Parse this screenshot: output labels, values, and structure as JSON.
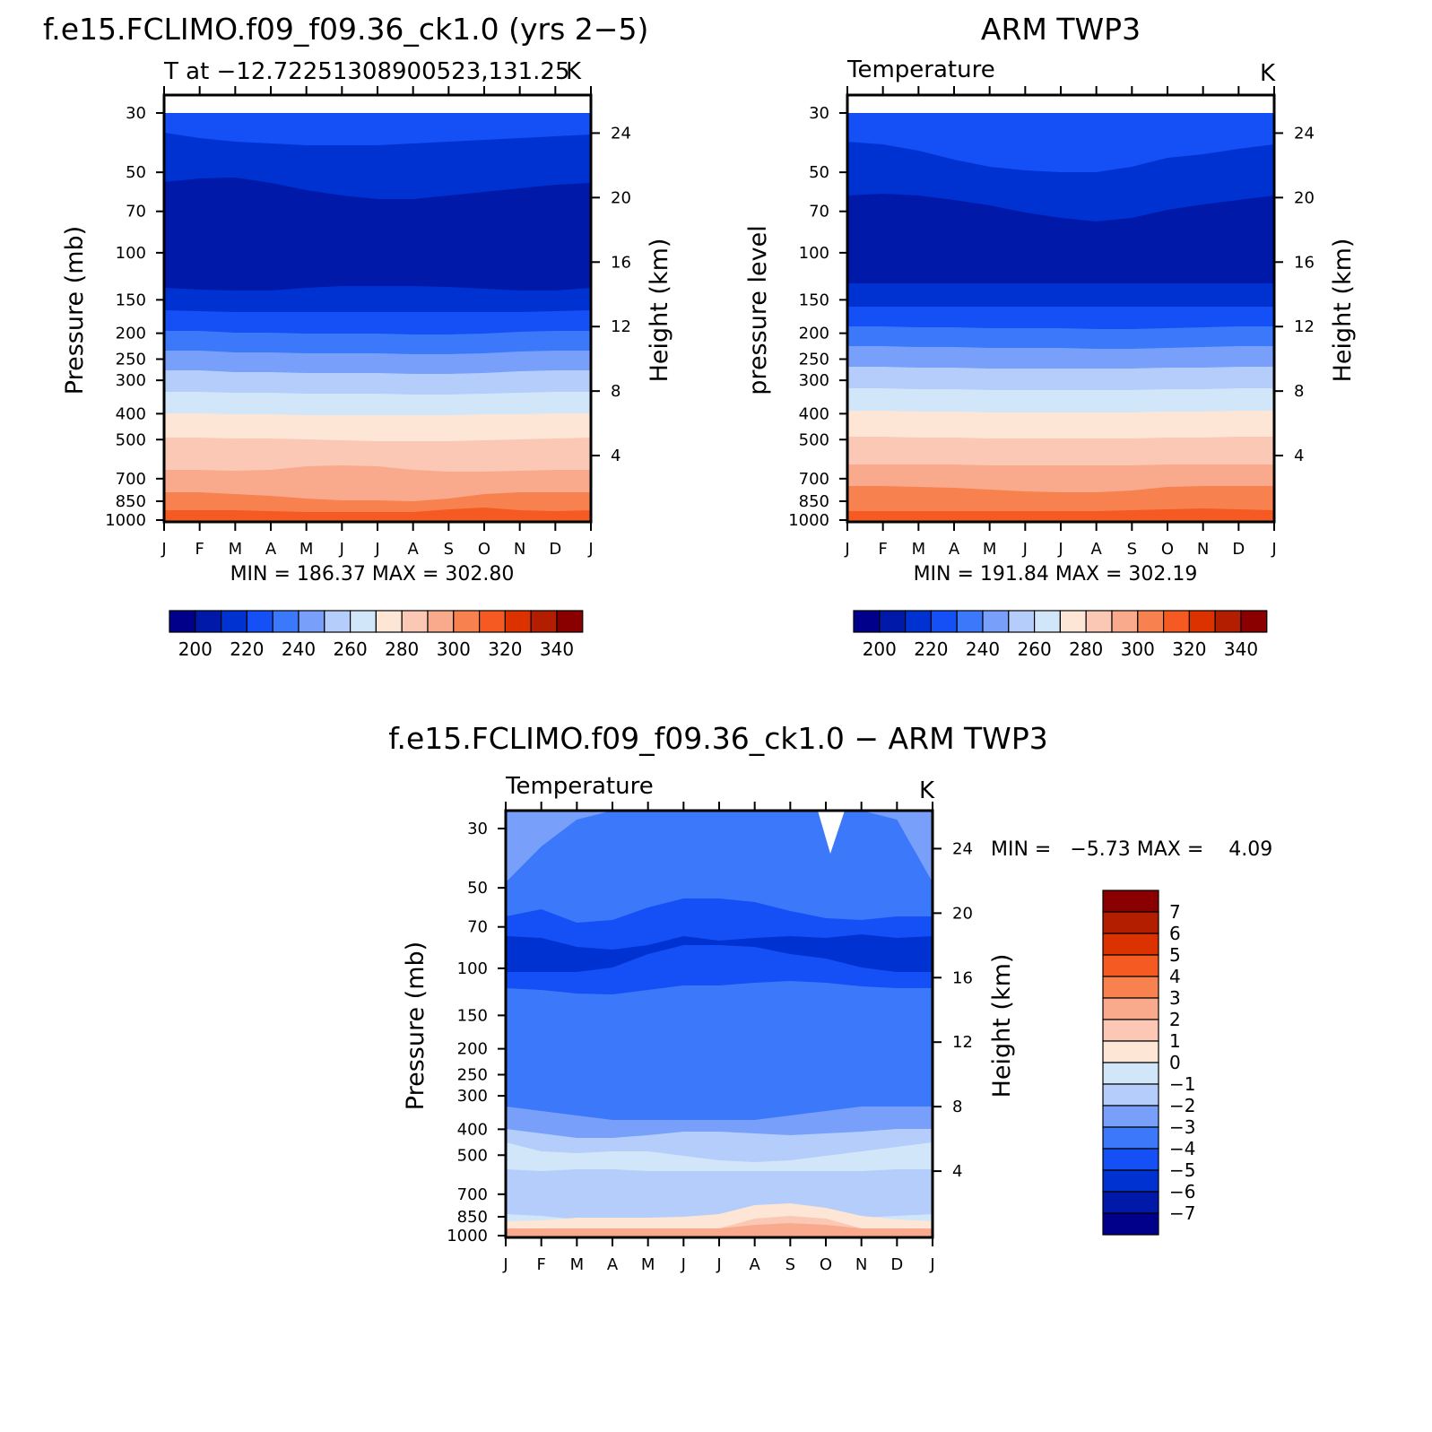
{
  "colors": {
    "abs_palette": [
      "#00008a",
      "#0019a8",
      "#0032d2",
      "#1450f5",
      "#3c78fa",
      "#78a0fa",
      "#b4cdfa",
      "#d2e6fa",
      "#fde6d6",
      "#fac8b4",
      "#faaa8c",
      "#f78250",
      "#f55a23",
      "#dc3200",
      "#b41e00",
      "#8a0000"
    ],
    "diff_palette": [
      "#00008a",
      "#0019a8",
      "#0032d2",
      "#1450f5",
      "#3c78fa",
      "#78a0fa",
      "#b4cdfa",
      "#d2e6fa",
      "#fde6d6",
      "#fac8b4",
      "#faaa8c",
      "#f78250",
      "#f55a23",
      "#dc3200",
      "#b41e00",
      "#8a0000"
    ]
  },
  "chart_data": [
    {
      "type": "heatmap",
      "title": "f.e15.FCLIMO.f09_f09.36_ck1.0 (yrs 2−5)",
      "subtitle_left": "T at −12.72251308900523,131.25",
      "subtitle_right": "K",
      "ylabel": "Pressure (mb)",
      "ylabel_right": "Height (km)",
      "x_ticks": [
        "J",
        "F",
        "M",
        "A",
        "M",
        "J",
        "J",
        "A",
        "S",
        "O",
        "N",
        "D",
        "J"
      ],
      "y_ticks": [
        "30",
        "50",
        "70",
        "100",
        "150",
        "200",
        "250",
        "300",
        "400",
        "500",
        "700",
        "850",
        "1000"
      ],
      "y_ticks_right": [
        "24",
        "20",
        "16",
        "12",
        "8",
        "4"
      ],
      "min_max": "MIN = 186.37 MAX = 302.80",
      "colorbar_labels": [
        "200",
        "220",
        "240",
        "260",
        "280",
        "300",
        "320",
        "340"
      ],
      "bands": [
        {
          "level": 210,
          "top": [
            20,
            20,
            20,
            20,
            20,
            20,
            20,
            20,
            20,
            20,
            20,
            20,
            20
          ]
        },
        {
          "level": 200,
          "top": [
            42,
            48,
            52,
            54,
            56,
            56,
            56,
            54,
            52,
            50,
            48,
            46,
            44
          ]
        },
        {
          "level": 190,
          "top": [
            97,
            93,
            92,
            98,
            106,
            112,
            116,
            116,
            112,
            108,
            104,
            100,
            98
          ]
        },
        {
          "level": 200,
          "top": [
            215,
            217,
            218,
            218,
            215,
            213,
            213,
            213,
            214,
            216,
            218,
            218,
            215
          ]
        },
        {
          "level": 210,
          "top": [
            240,
            241,
            242,
            242,
            242,
            242,
            242,
            242,
            242,
            242,
            242,
            241,
            240
          ]
        },
        {
          "level": 220,
          "top": [
            263,
            263,
            265,
            265,
            266,
            266,
            266,
            267,
            267,
            266,
            264,
            263,
            263
          ]
        },
        {
          "level": 230,
          "top": [
            285,
            285,
            287,
            287,
            288,
            288,
            288,
            289,
            289,
            288,
            286,
            285,
            285
          ]
        },
        {
          "level": 240,
          "top": [
            307,
            307,
            309,
            309,
            310,
            310,
            310,
            311,
            311,
            310,
            308,
            307,
            307
          ]
        },
        {
          "level": 250,
          "top": [
            331,
            331,
            332,
            332,
            333,
            333,
            333,
            334,
            334,
            333,
            332,
            331,
            331
          ]
        },
        {
          "level": 260,
          "top": [
            355,
            355,
            356,
            356,
            357,
            357,
            357,
            357,
            357,
            356,
            356,
            355,
            355
          ]
        },
        {
          "level": 270,
          "top": [
            382,
            382,
            383,
            383,
            384,
            385,
            386,
            386,
            386,
            385,
            384,
            383,
            382
          ]
        },
        {
          "level": 280,
          "top": [
            418,
            418,
            419,
            418,
            414,
            413,
            414,
            418,
            420,
            420,
            419,
            418,
            418
          ]
        },
        {
          "level": 290,
          "top": [
            443,
            443,
            445,
            447,
            450,
            452,
            452,
            453,
            450,
            445,
            443,
            443,
            443
          ]
        },
        {
          "level": 300,
          "top": [
            463,
            463,
            463,
            464,
            465,
            465,
            465,
            465,
            462,
            460,
            463,
            464,
            463
          ]
        }
      ]
    },
    {
      "type": "heatmap",
      "title": "ARM TWP3",
      "subtitle_left": "Temperature",
      "subtitle_right": "K",
      "ylabel": "pressure level",
      "ylabel_right": "Height (km)",
      "x_ticks": [
        "J",
        "F",
        "M",
        "A",
        "M",
        "J",
        "J",
        "A",
        "S",
        "O",
        "N",
        "D",
        "J"
      ],
      "y_ticks": [
        "30",
        "50",
        "70",
        "100",
        "150",
        "200",
        "250",
        "300",
        "400",
        "500",
        "700",
        "850",
        "1000"
      ],
      "y_ticks_right": [
        "24",
        "20",
        "16",
        "12",
        "8",
        "4"
      ],
      "min_max": "MIN = 191.84 MAX = 302.19",
      "colorbar_labels": [
        "200",
        "220",
        "240",
        "260",
        "280",
        "300",
        "320",
        "340"
      ],
      "bands": [
        {
          "level": 210,
          "top": [
            20,
            20,
            20,
            20,
            20,
            20,
            20,
            20,
            20,
            20,
            20,
            20,
            20
          ]
        },
        {
          "level": 200,
          "top": [
            52,
            55,
            62,
            72,
            80,
            84,
            86,
            86,
            80,
            70,
            66,
            60,
            55
          ]
        },
        {
          "level": 190,
          "top": [
            112,
            110,
            112,
            117,
            123,
            131,
            137,
            141,
            137,
            128,
            122,
            117,
            112
          ]
        },
        {
          "level": 200,
          "top": [
            210,
            210,
            210,
            210,
            210,
            210,
            210,
            210,
            210,
            210,
            210,
            210,
            210
          ]
        },
        {
          "level": 210,
          "top": [
            236,
            236,
            236,
            236,
            236,
            236,
            236,
            236,
            236,
            236,
            236,
            236,
            236
          ]
        },
        {
          "level": 220,
          "top": [
            258,
            258,
            259,
            259,
            260,
            260,
            260,
            261,
            261,
            260,
            259,
            258,
            258
          ]
        },
        {
          "level": 230,
          "top": [
            280,
            280,
            281,
            281,
            282,
            282,
            282,
            283,
            283,
            282,
            281,
            280,
            280
          ]
        },
        {
          "level": 240,
          "top": [
            303,
            303,
            304,
            304,
            305,
            305,
            305,
            305,
            305,
            304,
            304,
            303,
            303
          ]
        },
        {
          "level": 250,
          "top": [
            327,
            327,
            328,
            328,
            329,
            329,
            329,
            329,
            329,
            328,
            328,
            327,
            327
          ]
        },
        {
          "level": 260,
          "top": [
            352,
            352,
            353,
            353,
            354,
            354,
            354,
            354,
            354,
            353,
            353,
            352,
            352
          ]
        },
        {
          "level": 270,
          "top": [
            381,
            381,
            382,
            382,
            383,
            383,
            383,
            383,
            383,
            382,
            382,
            381,
            381
          ]
        },
        {
          "level": 280,
          "top": [
            412,
            412,
            412,
            412,
            413,
            413,
            413,
            413,
            413,
            412,
            412,
            412,
            412
          ]
        },
        {
          "level": 290,
          "top": [
            436,
            436,
            437,
            438,
            440,
            442,
            443,
            443,
            441,
            437,
            436,
            436,
            436
          ]
        },
        {
          "level": 300,
          "top": [
            464,
            464,
            464,
            464,
            464,
            464,
            464,
            464,
            463,
            462,
            461,
            462,
            463
          ]
        }
      ]
    },
    {
      "type": "heatmap",
      "title": "f.e15.FCLIMO.f09_f09.36_ck1.0 − ARM TWP3",
      "subtitle_left": "Temperature",
      "subtitle_right": "K",
      "ylabel": "Pressure (mb)",
      "ylabel_right": "Height (km)",
      "x_ticks": [
        "J",
        "F",
        "M",
        "A",
        "M",
        "J",
        "J",
        "A",
        "S",
        "O",
        "N",
        "D",
        "J"
      ],
      "y_ticks": [
        "30",
        "50",
        "70",
        "100",
        "150",
        "200",
        "250",
        "300",
        "400",
        "500",
        "700",
        "850",
        "1000"
      ],
      "y_ticks_right": [
        "24",
        "20",
        "16",
        "12",
        "8",
        "4"
      ],
      "min_max": "MIN =   −5.73 MAX =    4.09",
      "colorbar_labels": [
        "7",
        "6",
        "5",
        "4",
        "3",
        "2",
        "1",
        "0",
        "−1",
        "−2",
        "−3",
        "−4",
        "−5",
        "−6",
        "−7"
      ],
      "bands": [
        {
          "level": -2.5,
          "top": [
            0,
            0,
            0,
            0,
            0,
            0,
            0,
            0,
            0,
            0,
            0,
            0,
            0
          ]
        },
        {
          "level": -3.5,
          "top": [
            80,
            40,
            10,
            0,
            0,
            0,
            0,
            0,
            0,
            0,
            0,
            10,
            80
          ]
        },
        {
          "level": -4.5,
          "top": [
            118,
            110,
            125,
            122,
            108,
            98,
            98,
            102,
            112,
            120,
            122,
            118,
            118
          ]
        },
        {
          "level": -5.5,
          "top": [
            140,
            142,
            152,
            155,
            150,
            140,
            145,
            142,
            140,
            142,
            138,
            142,
            140
          ]
        },
        {
          "level": -4.5,
          "top": [
            180,
            180,
            180,
            175,
            160,
            150,
            150,
            152,
            160,
            165,
            175,
            180,
            180
          ]
        },
        {
          "level": -3.5,
          "top": [
            198,
            200,
            204,
            205,
            200,
            195,
            195,
            192,
            190,
            192,
            196,
            198,
            198
          ]
        },
        {
          "level": -2.5,
          "top": [
            330,
            335,
            340,
            345,
            345,
            345,
            345,
            345,
            340,
            335,
            330,
            330,
            330
          ]
        },
        {
          "level": -1.5,
          "top": [
            355,
            360,
            365,
            365,
            362,
            358,
            358,
            360,
            362,
            360,
            358,
            355,
            355
          ]
        },
        {
          "level": -0.5,
          "top": [
            370,
            380,
            382,
            380,
            380,
            385,
            390,
            392,
            390,
            385,
            380,
            375,
            370
          ]
        },
        {
          "level": -1.5,
          "top": [
            400,
            402,
            400,
            400,
            402,
            402,
            402,
            402,
            402,
            402,
            402,
            400,
            400
          ]
        },
        {
          "level": -0.5,
          "top": [
            450,
            452,
            456,
            458,
            458,
            456,
            452,
            445,
            445,
            450,
            454,
            452,
            450
          ]
        },
        {
          "level": 0.5,
          "top": [
            458,
            457,
            454,
            454,
            454,
            453,
            450,
            440,
            438,
            443,
            452,
            456,
            458
          ]
        },
        {
          "level": 1.5,
          "top": [
            466,
            466,
            466,
            466,
            466,
            466,
            466,
            455,
            452,
            455,
            466,
            466,
            466
          ]
        },
        {
          "level": 2.5,
          "top": [
            466,
            466,
            466,
            466,
            466,
            466,
            466,
            462,
            460,
            462,
            466,
            466,
            466
          ]
        }
      ]
    }
  ]
}
